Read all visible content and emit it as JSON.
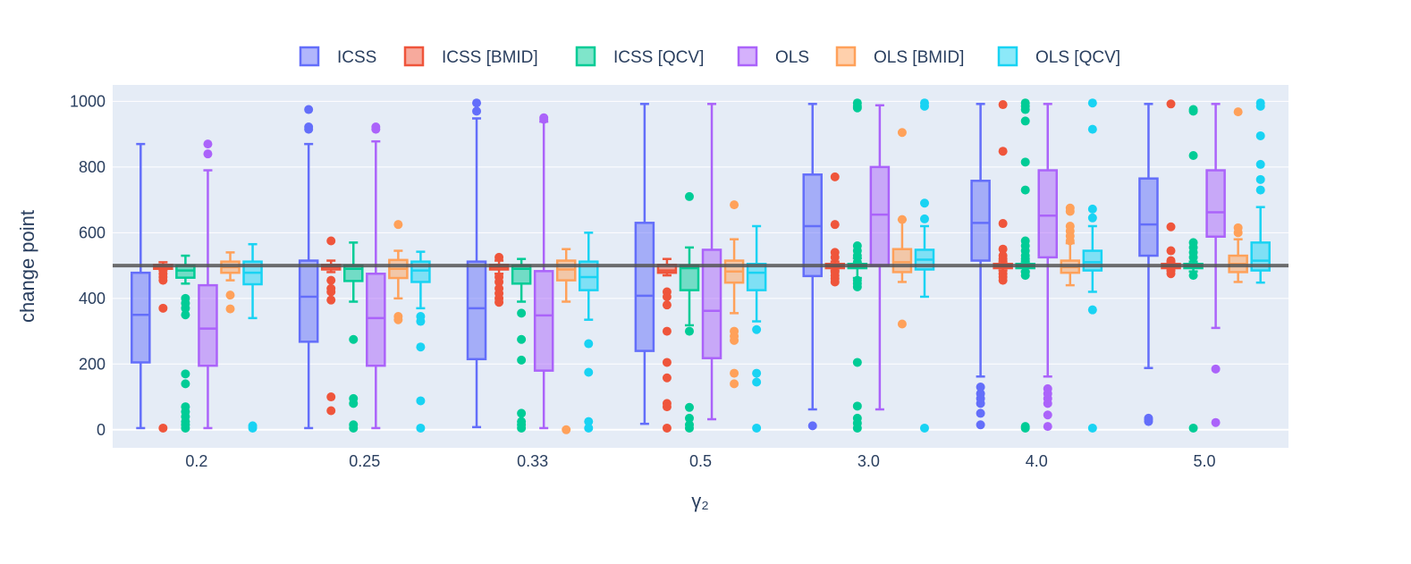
{
  "chart_data": {
    "type": "box",
    "title": "",
    "xlabel": "γ₂",
    "ylabel": "change point",
    "ylim": [
      -55,
      1050
    ],
    "yticks": [
      0,
      200,
      400,
      600,
      800,
      1000
    ],
    "categories": [
      "0.2",
      "0.25",
      "0.33",
      "0.5",
      "3.0",
      "4.0",
      "5.0"
    ],
    "reference_line": {
      "y": 500,
      "color": "#555555"
    },
    "legend": {
      "position": "top-center",
      "orientation": "horizontal"
    },
    "series": [
      {
        "name": "ICSS",
        "color": "#636efa",
        "boxes": [
          {
            "low": 5,
            "q1": 205,
            "median": 350,
            "q3": 478,
            "high": 870,
            "outliers": []
          },
          {
            "low": 5,
            "q1": 268,
            "median": 405,
            "q3": 515,
            "high": 870,
            "outliers": [
              915,
              922,
              975
            ]
          },
          {
            "low": 8,
            "q1": 215,
            "median": 370,
            "q3": 512,
            "high": 948,
            "outliers": [
              970,
              995
            ]
          },
          {
            "low": 18,
            "q1": 240,
            "median": 408,
            "q3": 630,
            "high": 992,
            "outliers": []
          },
          {
            "low": 62,
            "q1": 468,
            "median": 620,
            "q3": 777,
            "high": 992,
            "outliers": [
              12
            ]
          },
          {
            "low": 162,
            "q1": 515,
            "median": 630,
            "q3": 758,
            "high": 992,
            "outliers": [
              15,
              50,
              80,
              95,
              110,
              130
            ]
          },
          {
            "low": 188,
            "q1": 530,
            "median": 625,
            "q3": 765,
            "high": 992,
            "outliers": [
              25,
              30,
              35
            ]
          }
        ]
      },
      {
        "name": "ICSS [BMID]",
        "color": "#ef553b",
        "boxes": [
          {
            "low": 485,
            "q1": 490,
            "median": 495,
            "q3": 502,
            "high": 510,
            "outliers": [
              370,
              455,
              465,
              475,
              5
            ]
          },
          {
            "low": 480,
            "q1": 488,
            "median": 495,
            "q3": 502,
            "high": 515,
            "outliers": [
              575,
              455,
              430,
              420,
              395,
              100,
              58
            ]
          },
          {
            "low": 475,
            "q1": 488,
            "median": 495,
            "q3": 502,
            "high": 515,
            "outliers": [
              525,
              465,
              450,
              430,
              415,
              400,
              388
            ]
          },
          {
            "low": 470,
            "q1": 478,
            "median": 485,
            "q3": 502,
            "high": 520,
            "outliers": [
              420,
              405,
              380,
              300,
              205,
              158,
              80,
              70,
              5
            ]
          },
          {
            "low": 485,
            "q1": 492,
            "median": 498,
            "q3": 505,
            "high": 512,
            "outliers": [
              770,
              625,
              540,
              525,
              480,
              470,
              460,
              450
            ]
          },
          {
            "low": 485,
            "q1": 492,
            "median": 498,
            "q3": 505,
            "high": 512,
            "outliers": [
              990,
              848,
              628,
              550,
              530,
              520,
              475,
              465,
              455
            ]
          },
          {
            "low": 485,
            "q1": 492,
            "median": 498,
            "q3": 505,
            "high": 512,
            "outliers": [
              992,
              618,
              545,
              515,
              485,
              475
            ]
          }
        ]
      },
      {
        "name": "ICSS [QCV]",
        "color": "#00cc96",
        "boxes": [
          {
            "low": 445,
            "q1": 463,
            "median": 485,
            "q3": 500,
            "high": 530,
            "outliers": [
              400,
              385,
              370,
              350,
              170,
              140,
              70,
              55,
              40,
              25,
              15,
              5
            ]
          },
          {
            "low": 390,
            "q1": 453,
            "median": 490,
            "q3": 500,
            "high": 570,
            "outliers": [
              275,
              95,
              80,
              15,
              5
            ]
          },
          {
            "low": 390,
            "q1": 445,
            "median": 490,
            "q3": 500,
            "high": 520,
            "outliers": [
              355,
              275,
              212,
              50,
              25,
              15,
              5
            ]
          },
          {
            "low": 318,
            "q1": 425,
            "median": 492,
            "q3": 500,
            "high": 555,
            "outliers": [
              710,
              300,
              68,
              35,
              15,
              5
            ]
          },
          {
            "low": 462,
            "q1": 492,
            "median": 498,
            "q3": 505,
            "high": 522,
            "outliers": [
              995,
              985,
              980,
              560,
              545,
              530,
              510,
              455,
              445,
              435,
              205,
              72,
              35,
              20,
              5
            ]
          },
          {
            "low": 482,
            "q1": 492,
            "median": 498,
            "q3": 505,
            "high": 512,
            "outliers": [
              995,
              985,
              975,
              940,
              815,
              730,
              575,
              560,
              545,
              530,
              520,
              480,
              470,
              10,
              5
            ]
          },
          {
            "low": 482,
            "q1": 492,
            "median": 498,
            "q3": 505,
            "high": 512,
            "outliers": [
              975,
              970,
              835,
              570,
              555,
              540,
              525,
              470,
              5
            ]
          }
        ]
      },
      {
        "name": "OLS",
        "color": "#ab63fa",
        "boxes": [
          {
            "low": 5,
            "q1": 195,
            "median": 308,
            "q3": 440,
            "high": 790,
            "outliers": [
              870,
              840
            ]
          },
          {
            "low": 5,
            "q1": 195,
            "median": 340,
            "q3": 475,
            "high": 878,
            "outliers": [
              915,
              922
            ]
          },
          {
            "low": 5,
            "q1": 180,
            "median": 348,
            "q3": 483,
            "high": 938,
            "outliers": [
              945,
              950
            ]
          },
          {
            "low": 32,
            "q1": 218,
            "median": 362,
            "q3": 548,
            "high": 992,
            "outliers": []
          },
          {
            "low": 62,
            "q1": 500,
            "median": 655,
            "q3": 800,
            "high": 988,
            "outliers": []
          },
          {
            "low": 162,
            "q1": 525,
            "median": 652,
            "q3": 790,
            "high": 992,
            "outliers": [
              10,
              45,
              80,
              95,
              110,
              125
            ]
          },
          {
            "low": 310,
            "q1": 588,
            "median": 662,
            "q3": 790,
            "high": 992,
            "outliers": [
              185,
              22
            ]
          }
        ]
      },
      {
        "name": "OLS [BMID]",
        "color": "#ffa15a",
        "boxes": [
          {
            "low": 455,
            "q1": 478,
            "median": 495,
            "q3": 512,
            "high": 540,
            "outliers": [
              410,
              368
            ]
          },
          {
            "low": 400,
            "q1": 462,
            "median": 490,
            "q3": 517,
            "high": 545,
            "outliers": [
              625,
              345,
              335
            ]
          },
          {
            "low": 390,
            "q1": 455,
            "median": 488,
            "q3": 515,
            "high": 550,
            "outliers": [
              0
            ]
          },
          {
            "low": 355,
            "q1": 448,
            "median": 482,
            "q3": 515,
            "high": 580,
            "outliers": [
              685,
              300,
              285,
              272,
              172,
              140
            ]
          },
          {
            "low": 450,
            "q1": 480,
            "median": 510,
            "q3": 550,
            "high": 640,
            "outliers": [
              905,
              640,
              322
            ]
          },
          {
            "low": 440,
            "q1": 478,
            "median": 495,
            "q3": 515,
            "high": 568,
            "outliers": [
              675,
              665,
              620,
              605,
              590,
              575
            ]
          },
          {
            "low": 450,
            "q1": 480,
            "median": 505,
            "q3": 530,
            "high": 580,
            "outliers": [
              968,
              615,
              600
            ]
          }
        ]
      },
      {
        "name": "OLS [QCV]",
        "color": "#19d3f3",
        "boxes": [
          {
            "low": 340,
            "q1": 443,
            "median": 478,
            "q3": 512,
            "high": 565,
            "outliers": [
              12,
              5
            ]
          },
          {
            "low": 370,
            "q1": 450,
            "median": 485,
            "q3": 512,
            "high": 542,
            "outliers": [
              345,
              330,
              252,
              88,
              5
            ]
          },
          {
            "low": 335,
            "q1": 425,
            "median": 465,
            "q3": 512,
            "high": 600,
            "outliers": [
              262,
              175,
              25,
              5
            ]
          },
          {
            "low": 330,
            "q1": 425,
            "median": 478,
            "q3": 505,
            "high": 620,
            "outliers": [
              305,
              172,
              145,
              5
            ]
          },
          {
            "low": 405,
            "q1": 488,
            "median": 518,
            "q3": 548,
            "high": 620,
            "outliers": [
              995,
              985,
              690,
              642,
              5
            ]
          },
          {
            "low": 420,
            "q1": 485,
            "median": 510,
            "q3": 545,
            "high": 620,
            "outliers": [
              995,
              915,
              672,
              645,
              365,
              5
            ]
          },
          {
            "low": 448,
            "q1": 485,
            "median": 515,
            "q3": 570,
            "high": 678,
            "outliers": [
              995,
              985,
              895,
              808,
              762,
              730
            ]
          }
        ]
      }
    ]
  }
}
